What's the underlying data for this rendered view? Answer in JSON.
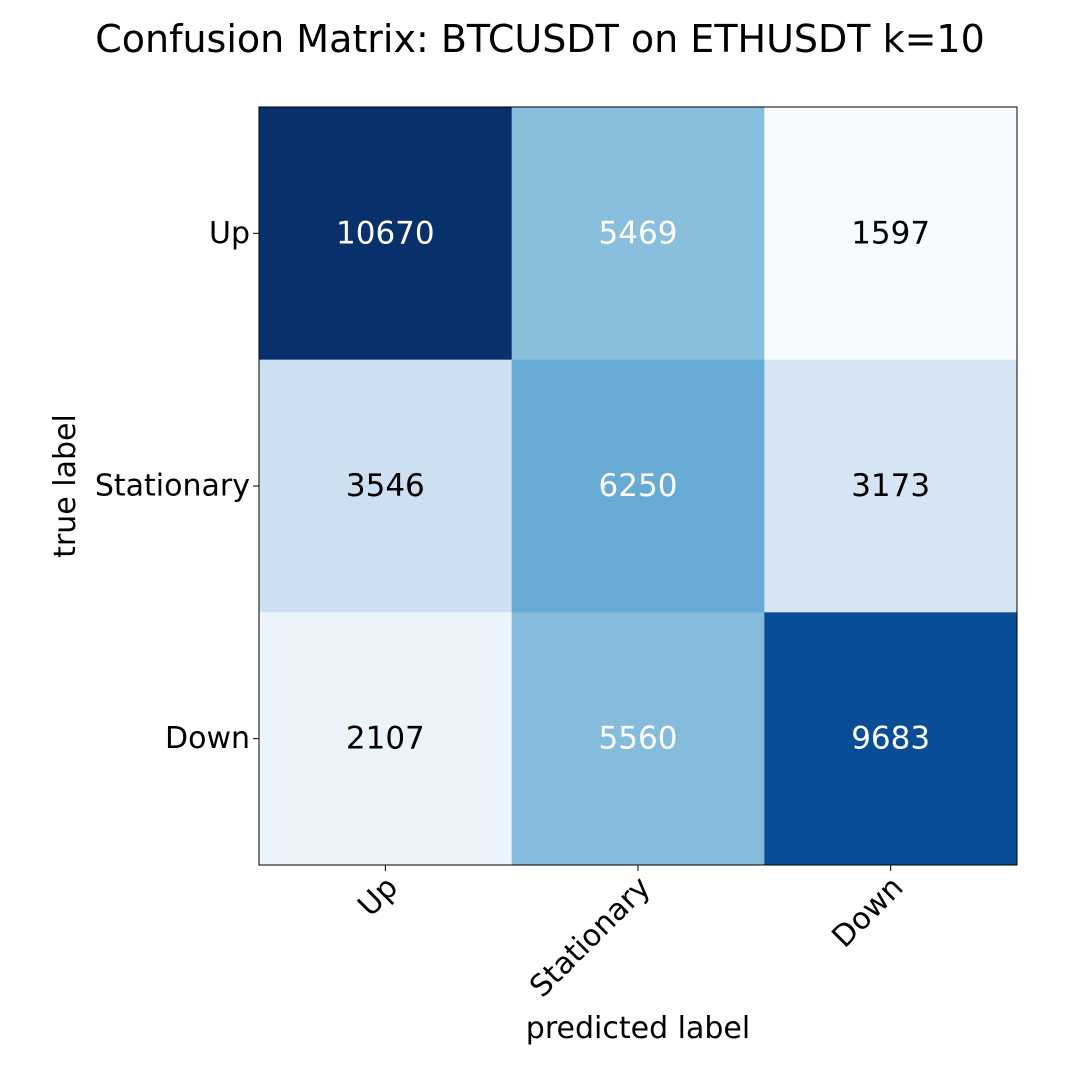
{
  "chart_data": {
    "type": "heatmap",
    "title": "Confusion Matrix: BTCUSDT on ETHUSDT k=10",
    "xlabel": "predicted label",
    "ylabel": "true label",
    "x_categories": [
      "Up",
      "Stationary",
      "Down"
    ],
    "y_categories": [
      "Up",
      "Stationary",
      "Down"
    ],
    "values": [
      [
        10670,
        5469,
        1597
      ],
      [
        3546,
        6250,
        3173
      ],
      [
        2107,
        5560,
        9683
      ]
    ],
    "colormap": "Blues",
    "colorbar": false,
    "grid": false,
    "text_color_threshold": 5335
  }
}
